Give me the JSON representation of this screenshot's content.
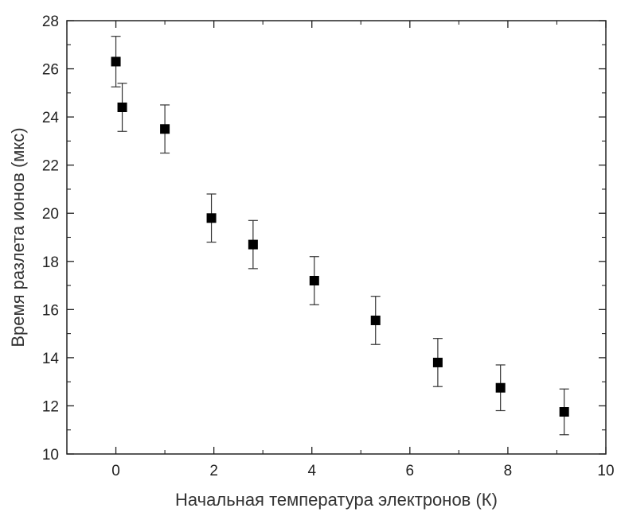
{
  "chart_data": {
    "type": "scatter",
    "xlabel": "Начальная температура электронов (К)",
    "ylabel": "Время разлета ионов (мкс)",
    "xlim": [
      -1,
      10
    ],
    "ylim": [
      10,
      28
    ],
    "xticks": [
      0,
      2,
      4,
      6,
      8,
      10
    ],
    "yticks": [
      10,
      12,
      14,
      16,
      18,
      20,
      22,
      24,
      26,
      28
    ],
    "x_tick_labels": [
      "0",
      "2",
      "4",
      "6",
      "8",
      "10"
    ],
    "y_tick_labels": [
      "10",
      "12",
      "14",
      "16",
      "18",
      "20",
      "22",
      "24",
      "26",
      "28"
    ],
    "grid": false,
    "marker": "square",
    "marker_color": "#000000",
    "points": [
      {
        "x": 0.0,
        "y": 26.3,
        "err": 1.05
      },
      {
        "x": 0.13,
        "y": 24.4,
        "err": 1.0
      },
      {
        "x": 1.0,
        "y": 23.5,
        "err": 1.0
      },
      {
        "x": 1.95,
        "y": 19.8,
        "err": 1.0
      },
      {
        "x": 2.8,
        "y": 18.7,
        "err": 1.0
      },
      {
        "x": 4.05,
        "y": 17.2,
        "err": 1.0
      },
      {
        "x": 5.3,
        "y": 15.55,
        "err": 1.0
      },
      {
        "x": 6.57,
        "y": 13.8,
        "err": 1.0
      },
      {
        "x": 7.85,
        "y": 12.75,
        "err": 0.95
      },
      {
        "x": 9.15,
        "y": 11.75,
        "err": 0.95
      }
    ]
  }
}
